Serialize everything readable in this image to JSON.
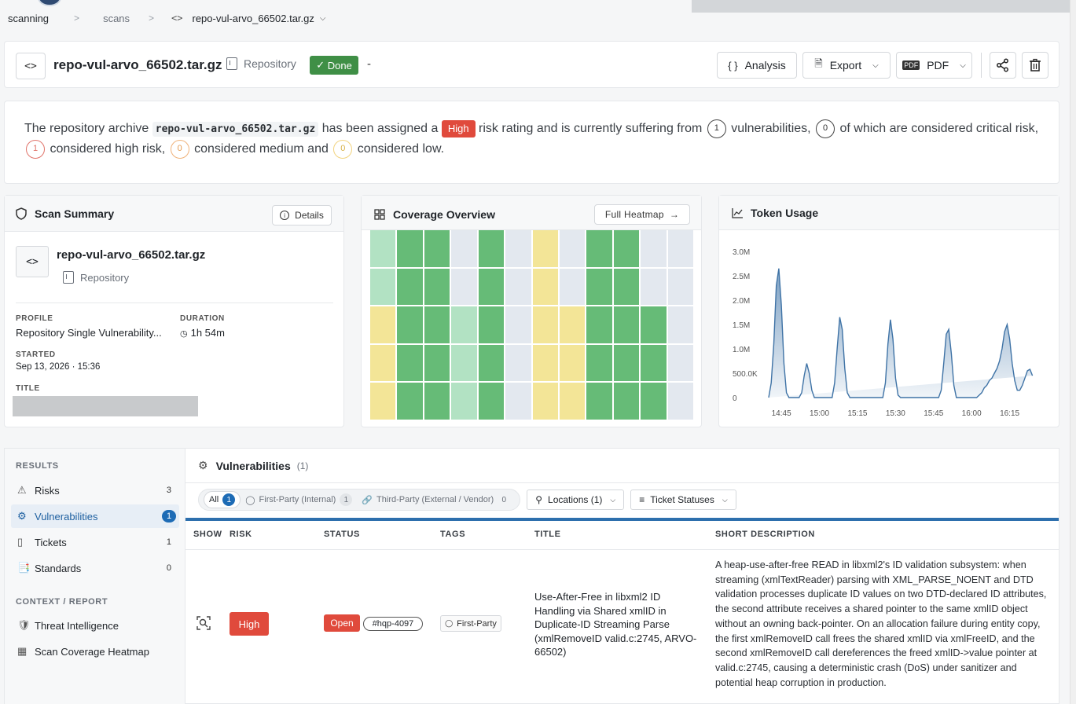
{
  "breadcrumb": {
    "items": [
      "scanning",
      "scans",
      "repo-vul-arvo_66502.tar.gz"
    ],
    "separator": ">"
  },
  "header": {
    "name": "repo-vul-arvo_66502.tar.gz",
    "type": "Repository",
    "status": "Done",
    "dash": "-",
    "buttons": {
      "analysis": "Analysis",
      "export": "Export",
      "pdf": "PDF"
    }
  },
  "summary": {
    "p1": "The repository archive",
    "archive": "repo-vul-arvo_66502.tar.gz",
    "p2": "has been assigned a",
    "rating": "High",
    "p3": "risk rating and is currently suffering from",
    "total": "1",
    "p4": "vulnerabilities,",
    "critical": "0",
    "p5": "of which are considered critical risk,",
    "high": "1",
    "p6": "considered high risk,",
    "medium": "0",
    "p7": "considered medium and",
    "low": "0",
    "p8": "considered low."
  },
  "scan_summary": {
    "title": "Scan Summary",
    "details_label": "Details",
    "name": "repo-vul-arvo_66502.tar.gz",
    "type": "Repository",
    "profile_label": "PROFILE",
    "profile": "Repository Single Vulnerability...",
    "duration_label": "DURATION",
    "duration": "1h 54m",
    "started_label": "STARTED",
    "started": "Sep 13, 2026 · 15:36",
    "title_label": "TITLE"
  },
  "coverage": {
    "title": "Coverage Overview",
    "button": "Full Heatmap",
    "colors": {
      "g": "#66bb77",
      "l": "#b2e2c3",
      "y": "#f3e597",
      "e": "#e3e8ef"
    },
    "grid": [
      [
        "l",
        "g",
        "g",
        "e",
        "g",
        "e",
        "y",
        "e",
        "g",
        "g",
        "e",
        "e"
      ],
      [
        "l",
        "g",
        "g",
        "e",
        "g",
        "e",
        "y",
        "e",
        "g",
        "g",
        "e",
        "e"
      ],
      [
        "y",
        "g",
        "g",
        "l",
        "g",
        "e",
        "y",
        "y",
        "g",
        "g",
        "g",
        "e"
      ],
      [
        "y",
        "g",
        "g",
        "l",
        "g",
        "e",
        "y",
        "y",
        "g",
        "g",
        "g",
        "e"
      ],
      [
        "y",
        "g",
        "g",
        "l",
        "g",
        "e",
        "y",
        "y",
        "g",
        "g",
        "g",
        "e"
      ]
    ]
  },
  "token_usage": {
    "title": "Token Usage"
  },
  "chart_data": {
    "type": "area",
    "title": "Token Usage",
    "x_ticks": [
      "14:45",
      "15:00",
      "15:15",
      "15:30",
      "15:45",
      "16:00",
      "16:15"
    ],
    "y_ticks": [
      "0",
      "500.0K",
      "1.0M",
      "1.5M",
      "2.0M",
      "2.5M",
      "3.0M"
    ],
    "ylim": [
      0,
      3000000
    ],
    "xlim_minutes": [
      0,
      110
    ],
    "x_minutes_from_14_40": [
      0,
      1,
      2,
      3,
      4,
      5,
      6,
      7,
      8,
      9,
      10,
      11,
      12,
      13,
      14,
      15,
      16,
      17,
      18,
      19,
      20,
      21,
      22,
      23,
      24,
      25,
      26,
      27,
      28,
      29,
      30,
      31,
      32,
      33,
      34,
      35,
      36,
      37,
      38,
      39,
      40,
      41,
      42,
      43,
      44,
      45,
      46,
      47,
      48,
      49,
      50,
      51,
      52,
      53,
      54,
      55,
      56,
      57,
      58,
      59,
      60,
      61,
      62,
      63,
      64,
      65,
      66,
      67,
      68,
      69,
      70,
      71,
      72,
      73,
      74,
      75,
      76,
      77,
      78,
      79,
      80,
      81,
      82,
      83,
      84,
      85,
      86,
      87,
      88,
      89,
      90,
      91,
      92,
      93,
      94,
      95,
      96,
      97,
      98,
      99,
      100,
      101,
      102,
      103,
      104,
      105,
      106,
      107,
      108,
      109,
      110
    ],
    "values": [
      0,
      300000,
      1100000,
      2300000,
      2650000,
      1900000,
      700000,
      100000,
      0,
      0,
      0,
      0,
      0,
      100000,
      450000,
      700000,
      500000,
      150000,
      0,
      0,
      0,
      0,
      0,
      0,
      0,
      0,
      300000,
      1000000,
      1650000,
      1400000,
      600000,
      100000,
      0,
      0,
      0,
      0,
      0,
      0,
      0,
      0,
      0,
      0,
      0,
      0,
      0,
      0,
      300000,
      1100000,
      1600000,
      1200000,
      400000,
      50000,
      0,
      0,
      0,
      0,
      0,
      0,
      0,
      0,
      0,
      0,
      0,
      0,
      0,
      0,
      0,
      0,
      150000,
      700000,
      1300000,
      1400000,
      900000,
      250000,
      0,
      0,
      0,
      0,
      0,
      0,
      0,
      0,
      0,
      50000,
      100000,
      200000,
      250000,
      350000,
      400000,
      500000,
      600000,
      750000,
      1000000,
      1350000,
      1500000,
      1200000,
      700000,
      350000,
      150000,
      150000,
      250000,
      400000,
      550000,
      580000,
      450000
    ]
  },
  "sidebar": {
    "results_header": "RESULTS",
    "items": [
      {
        "label": "Risks",
        "count": "3"
      },
      {
        "label": "Vulnerabilities",
        "count": "1"
      },
      {
        "label": "Tickets",
        "count": "1"
      },
      {
        "label": "Standards",
        "count": "0"
      }
    ],
    "context_header": "CONTEXT / REPORT",
    "context_items": [
      {
        "label": "Threat Intelligence"
      },
      {
        "label": "Scan Coverage Heatmap"
      }
    ]
  },
  "vulnerabilities": {
    "title": "Vulnerabilities",
    "count": "(1)",
    "filters": {
      "all": "All",
      "all_count": "1",
      "first_party": "First-Party (Internal)",
      "first_party_count": "1",
      "third_party": "Third-Party (External / Vendor)",
      "third_party_count": "0",
      "locations": "Locations (1)",
      "ticket_statuses": "Ticket Statuses"
    },
    "columns": [
      "SHOW",
      "RISK",
      "STATUS",
      "TAGS",
      "TITLE",
      "SHORT DESCRIPTION"
    ],
    "rows": [
      {
        "risk": "High",
        "status": "Open",
        "ticket": "#hqp-4097",
        "tag": "First-Party",
        "title": "Use-After-Free in libxml2 ID Handling via Shared xmlID in Duplicate-ID Streaming Parse (xmlRemoveID valid.c:2745, ARVO-66502)",
        "description": "A heap-use-after-free READ in libxml2's ID validation subsystem: when streaming (xmlTextReader) parsing with XML_PARSE_NOENT and DTD validation processes duplicate ID values on two DTD-declared ID attributes, the second attribute receives a shared pointer to the same xmlID object without an owning back-pointer. On an allocation failure during entity copy, the first xmlRemoveID call frees the shared xmlID via xmlFreeID, and the second xmlRemoveID call dereferences the freed xmlID->value pointer at valid.c:2745, causing a deterministic crash (DoS) under sanitizer and potential heap corruption in production."
      }
    ]
  }
}
